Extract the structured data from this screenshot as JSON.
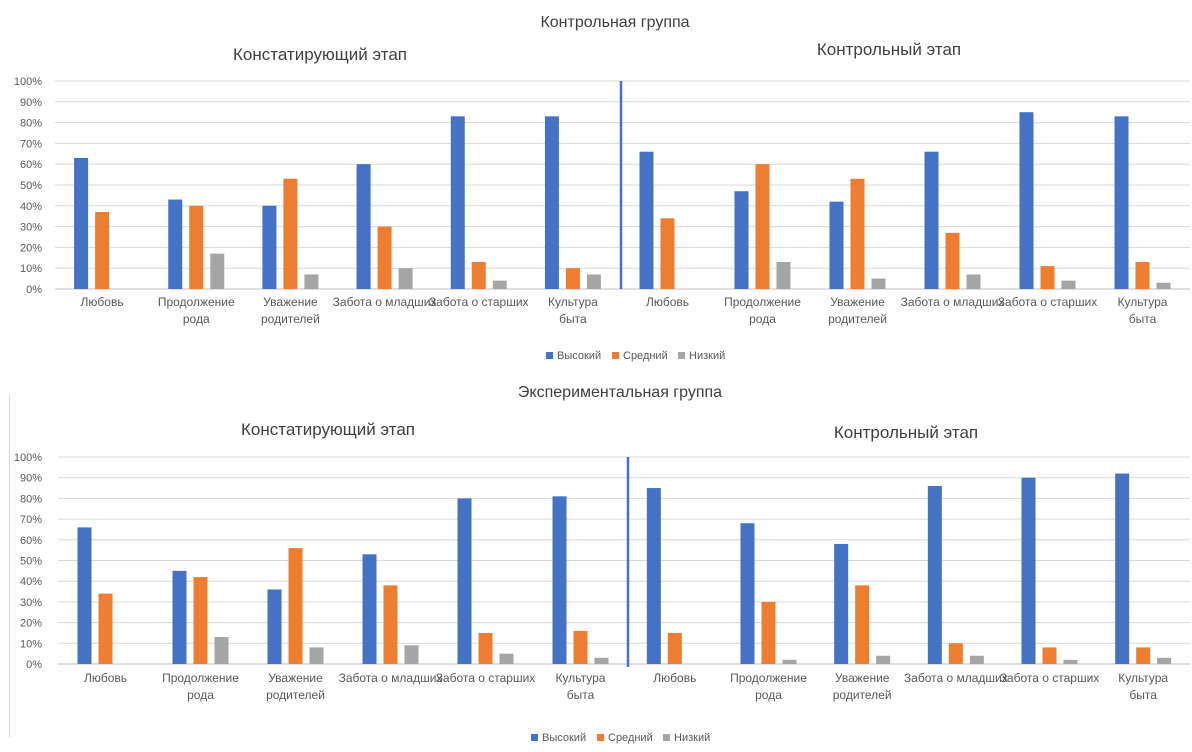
{
  "chart_data": [
    {
      "type": "bar",
      "title": "Контрольная группа",
      "stage_titles": [
        "Констатирующий этап",
        "Контрольный этап"
      ],
      "categories": [
        "Любовь",
        "Продолжение рода",
        "Уважение родителей",
        "Забота о младших",
        "Забота о старших",
        "Культура быта",
        "Любовь",
        "Продолжение рода",
        "Уважение родителей",
        "Забота о младших",
        "Забота о старших",
        "Культура быта"
      ],
      "series": [
        {
          "name": "Высокий",
          "color": "#4472c4",
          "values": [
            63,
            43,
            40,
            60,
            83,
            83,
            66,
            47,
            42,
            66,
            85,
            83
          ]
        },
        {
          "name": "Средний",
          "color": "#ed7d31",
          "values": [
            37,
            40,
            53,
            30,
            13,
            10,
            34,
            60,
            53,
            27,
            11,
            13
          ]
        },
        {
          "name": "Низкий",
          "color": "#a5a5a5",
          "values": [
            0,
            17,
            7,
            10,
            4,
            7,
            0,
            13,
            5,
            7,
            4,
            3
          ]
        }
      ],
      "yticks": [
        "0%",
        "10%",
        "20%",
        "30%",
        "40%",
        "50%",
        "60%",
        "70%",
        "80%",
        "90%",
        "100%"
      ],
      "ylim": [
        0,
        100
      ],
      "grid": true,
      "legend": "bottom"
    },
    {
      "type": "bar",
      "title": "Экспериментальная группа",
      "stage_titles": [
        "Констатирующий этап",
        "Контрольный этап"
      ],
      "categories": [
        "Любовь",
        "Продолжение рода",
        "Уважение родителей",
        "Забота о младших",
        "Забота о старших",
        "Культура быта",
        "Любовь",
        "Продолжение рода",
        "Уважение родителей",
        "Забота о младших",
        "Забота о старших",
        "Культура быта"
      ],
      "series": [
        {
          "name": "Высокий",
          "color": "#4472c4",
          "values": [
            66,
            45,
            36,
            53,
            80,
            81,
            85,
            68,
            58,
            86,
            90,
            92
          ]
        },
        {
          "name": "Средний",
          "color": "#ed7d31",
          "values": [
            34,
            42,
            56,
            38,
            15,
            16,
            15,
            30,
            38,
            10,
            8,
            8
          ]
        },
        {
          "name": "Низкий",
          "color": "#a5a5a5",
          "values": [
            0,
            13,
            8,
            9,
            5,
            3,
            0,
            2,
            4,
            4,
            2,
            3
          ]
        }
      ],
      "yticks": [
        "0%",
        "10%",
        "20%",
        "30%",
        "40%",
        "50%",
        "60%",
        "70%",
        "80%",
        "90%",
        "100%"
      ],
      "ylim": [
        0,
        100
      ],
      "grid": true,
      "legend": "bottom"
    }
  ]
}
